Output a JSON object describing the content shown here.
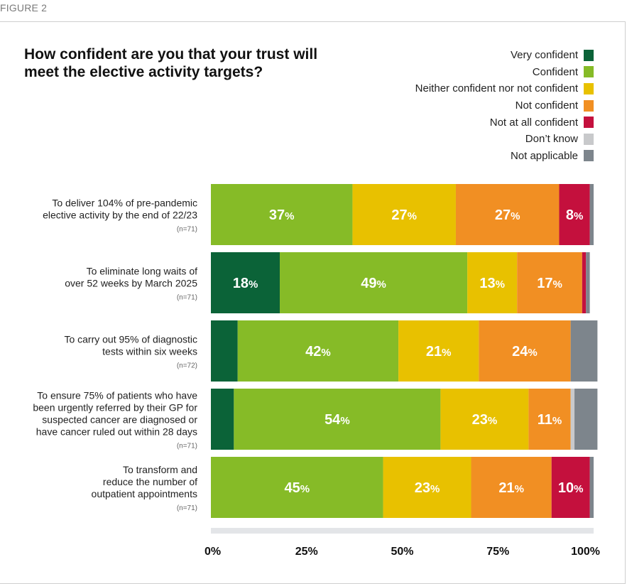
{
  "figure_label": "FIGURE 2",
  "colors": {
    "very_confident": "#0b6338",
    "confident": "#86bb27",
    "neither": "#e8c100",
    "not_confident": "#f18f23",
    "not_at_all": "#c4103d",
    "dont_know": "#c8c9cb",
    "not_applicable": "#7d858c"
  },
  "chart_data": {
    "type": "bar",
    "orientation": "horizontal",
    "stacked": true,
    "title": "How confident are you that your trust will meet the elective activity targets?",
    "categories": [
      {
        "lines": [
          "To deliver 104% of pre-pandemic",
          "elective activity by the end of 22/23"
        ],
        "n": "(n=71)"
      },
      {
        "lines": [
          "To eliminate long waits of",
          "over 52 weeks by March 2025"
        ],
        "n": "(n=71)"
      },
      {
        "lines": [
          "To carry out 95% of diagnostic",
          "tests within six weeks"
        ],
        "n": "(n=72)"
      },
      {
        "lines": [
          "To ensure 75% of patients who have",
          "been urgently referred by their GP for",
          "suspected cancer are diagnosed or",
          "have cancer ruled out within 28 days"
        ],
        "n": "(n=71)"
      },
      {
        "lines": [
          "To transform and",
          "reduce the number of",
          "outpatient appointments"
        ],
        "n": "(n=71)"
      }
    ],
    "series": [
      {
        "name": "Very confident",
        "key": "very_confident",
        "values": [
          0,
          18,
          7,
          6,
          0
        ]
      },
      {
        "name": "Confident",
        "key": "confident",
        "values": [
          37,
          49,
          42,
          54,
          45
        ]
      },
      {
        "name": "Neither confident nor not confident",
        "key": "neither",
        "values": [
          27,
          13,
          21,
          23,
          23
        ]
      },
      {
        "name": "Not confident",
        "key": "not_confident",
        "values": [
          27,
          17,
          24,
          11,
          21
        ]
      },
      {
        "name": "Not at all confident",
        "key": "not_at_all",
        "values": [
          8,
          1,
          0,
          0,
          10
        ]
      },
      {
        "name": "Don’t know",
        "key": "dont_know",
        "values": [
          0,
          0,
          0,
          1,
          0
        ]
      },
      {
        "name": "Not applicable",
        "key": "not_applicable",
        "values": [
          1,
          1,
          7,
          6,
          1
        ]
      }
    ],
    "data_labels": [
      [
        null,
        "37",
        "27",
        "27",
        "8",
        null,
        null
      ],
      [
        "18",
        "49",
        "13",
        "17",
        null,
        null,
        null
      ],
      [
        null,
        "42",
        "21",
        "24",
        null,
        null,
        null
      ],
      [
        null,
        "54",
        "23",
        "11",
        null,
        null,
        null
      ],
      [
        null,
        "45",
        "23",
        "21",
        "10",
        null,
        null
      ]
    ],
    "xlim": [
      0,
      100
    ],
    "x_ticks": [
      "0%",
      "25%",
      "50%",
      "75%",
      "100%"
    ],
    "legend_position": "top-right",
    "grid": false
  }
}
